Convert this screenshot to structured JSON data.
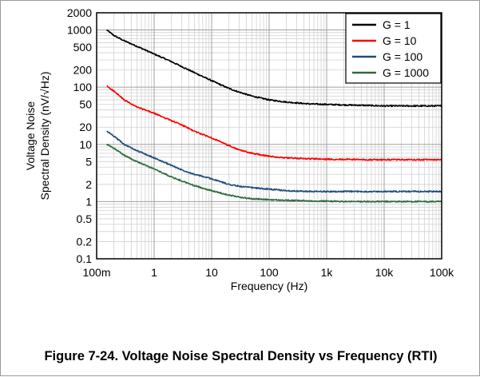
{
  "caption": "Figure 7-24. Voltage Noise Spectral Density vs Frequency (RTI)",
  "chart_data": {
    "type": "line",
    "xscale": "log",
    "yscale": "log",
    "xlim": [
      0.1,
      100000
    ],
    "ylim": [
      0.1,
      2000
    ],
    "xlabel": "Frequency (Hz)",
    "ylabel_line1": "Voltage Noise",
    "ylabel_line2": "Spectral Density (nV/√Hz)",
    "grid": true,
    "legend_position": "top-right",
    "x_ticks": [
      {
        "value": 0.1,
        "label": "100m"
      },
      {
        "value": 1,
        "label": "1"
      },
      {
        "value": 10,
        "label": "10"
      },
      {
        "value": 100,
        "label": "100"
      },
      {
        "value": 1000,
        "label": "1k"
      },
      {
        "value": 10000,
        "label": "10k"
      },
      {
        "value": 100000,
        "label": "100k"
      }
    ],
    "y_ticks": [
      {
        "value": 2000,
        "label": "2000"
      },
      {
        "value": 1000,
        "label": "1000"
      },
      {
        "value": 500,
        "label": "500"
      },
      {
        "value": 200,
        "label": "200"
      },
      {
        "value": 100,
        "label": "100"
      },
      {
        "value": 50,
        "label": "50"
      },
      {
        "value": 20,
        "label": "20"
      },
      {
        "value": 10,
        "label": "10"
      },
      {
        "value": 5,
        "label": "5"
      },
      {
        "value": 2,
        "label": "2"
      },
      {
        "value": 1,
        "label": "1"
      },
      {
        "value": 0.5,
        "label": "0.5"
      },
      {
        "value": 0.2,
        "label": "0.2"
      },
      {
        "value": 0.1,
        "label": "0.1"
      }
    ],
    "series": [
      {
        "name": "G = 1",
        "color": "#000000",
        "x": [
          0.15,
          0.2,
          0.3,
          0.5,
          1,
          2,
          3,
          5,
          10,
          20,
          30,
          50,
          100,
          200,
          500,
          1000,
          2000,
          5000,
          10000,
          20000,
          50000,
          100000
        ],
        "y": [
          1000,
          800,
          650,
          520,
          380,
          280,
          230,
          180,
          130,
          95,
          82,
          70,
          60,
          55,
          51,
          50,
          49,
          48,
          47,
          47,
          47,
          47
        ]
      },
      {
        "name": "G = 10",
        "color": "#ff0000",
        "x": [
          0.15,
          0.2,
          0.3,
          0.5,
          1,
          2,
          3,
          5,
          10,
          20,
          30,
          50,
          100,
          200,
          500,
          1000,
          2000,
          5000,
          10000,
          20000,
          50000,
          100000
        ],
        "y": [
          105,
          85,
          60,
          45,
          35,
          26,
          22,
          17,
          13,
          9.5,
          8,
          7,
          6.2,
          5.8,
          5.6,
          5.5,
          5.5,
          5.4,
          5.4,
          5.4,
          5.4,
          5.4
        ]
      },
      {
        "name": "G = 100",
        "color": "#1f4e79",
        "x": [
          0.15,
          0.2,
          0.3,
          0.5,
          1,
          2,
          3,
          5,
          10,
          20,
          30,
          50,
          100,
          200,
          500,
          1000,
          2000,
          5000,
          10000,
          20000,
          50000,
          100000
        ],
        "y": [
          17,
          14,
          10,
          7.8,
          5.8,
          4.3,
          3.6,
          3.0,
          2.5,
          2.0,
          1.85,
          1.75,
          1.65,
          1.55,
          1.5,
          1.5,
          1.5,
          1.5,
          1.5,
          1.5,
          1.5,
          1.5
        ]
      },
      {
        "name": "G = 1000",
        "color": "#2e6b3e",
        "x": [
          0.15,
          0.2,
          0.3,
          0.5,
          1,
          2,
          3,
          5,
          10,
          20,
          30,
          50,
          100,
          200,
          500,
          1000,
          2000,
          5000,
          10000,
          20000,
          50000,
          100000
        ],
        "y": [
          10,
          8.5,
          6.5,
          5.0,
          3.7,
          2.7,
          2.3,
          1.9,
          1.55,
          1.3,
          1.2,
          1.12,
          1.08,
          1.05,
          1.03,
          1.02,
          1.0,
          1.0,
          1.0,
          1.0,
          1.0,
          1.0
        ]
      }
    ]
  }
}
